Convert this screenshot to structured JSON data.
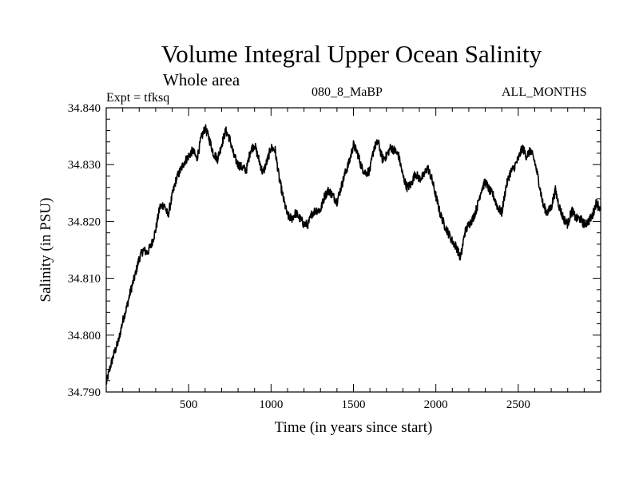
{
  "header": {
    "title": "Volume Integral Upper Ocean Salinity",
    "subtitle": "Whole area",
    "expt": "Expt = tfksq",
    "run": "080_8_MaBP",
    "period": "ALL_MONTHS"
  },
  "chart_data": {
    "type": "line",
    "title": "Volume Integral Upper Ocean Salinity",
    "subtitle": "Whole area",
    "xlabel": "Time (in years since start)",
    "ylabel": "Salinity (in PSU)",
    "xlim": [
      0,
      3000
    ],
    "ylim": [
      34.79,
      34.84
    ],
    "xticks": [
      500,
      1000,
      1500,
      2000,
      2500
    ],
    "xtick_labels": [
      "500",
      "1000",
      "1500",
      "2000",
      "2500"
    ],
    "yticks": [
      34.79,
      34.8,
      34.81,
      34.82,
      34.83,
      34.84
    ],
    "ytick_labels": [
      "34.790",
      "34.800",
      "34.810",
      "34.820",
      "34.830",
      "34.840"
    ],
    "grid": false,
    "series": [
      {
        "name": "Salinity",
        "color": "#000000",
        "x": [
          0,
          25,
          50,
          75,
          100,
          125,
          150,
          175,
          200,
          225,
          250,
          275,
          300,
          325,
          350,
          375,
          400,
          425,
          450,
          475,
          500,
          525,
          550,
          575,
          600,
          625,
          650,
          675,
          700,
          725,
          750,
          775,
          800,
          825,
          850,
          875,
          900,
          925,
          950,
          975,
          1000,
          1025,
          1050,
          1075,
          1100,
          1125,
          1150,
          1175,
          1200,
          1225,
          1250,
          1275,
          1300,
          1325,
          1350,
          1375,
          1400,
          1425,
          1450,
          1475,
          1500,
          1525,
          1550,
          1575,
          1600,
          1625,
          1650,
          1675,
          1700,
          1725,
          1750,
          1775,
          1800,
          1825,
          1850,
          1875,
          1900,
          1925,
          1950,
          1975,
          2000,
          2025,
          2050,
          2075,
          2100,
          2125,
          2150,
          2175,
          2200,
          2225,
          2250,
          2275,
          2300,
          2325,
          2350,
          2375,
          2400,
          2425,
          2450,
          2475,
          2500,
          2525,
          2550,
          2575,
          2600,
          2625,
          2650,
          2675,
          2700,
          2725,
          2750,
          2775,
          2800,
          2825,
          2850,
          2875,
          2900,
          2925,
          2950,
          2975,
          3000
        ],
        "values": [
          34.7915,
          34.7945,
          34.797,
          34.799,
          34.8025,
          34.805,
          34.808,
          34.8105,
          34.8135,
          34.815,
          34.8145,
          34.816,
          34.8185,
          34.8225,
          34.823,
          34.821,
          34.8245,
          34.8275,
          34.829,
          34.8305,
          34.8315,
          34.8325,
          34.831,
          34.8345,
          34.8365,
          34.8345,
          34.832,
          34.831,
          34.8335,
          34.836,
          34.8345,
          34.8315,
          34.83,
          34.8295,
          34.829,
          34.8325,
          34.8335,
          34.831,
          34.8285,
          34.8305,
          34.833,
          34.8325,
          34.8275,
          34.824,
          34.821,
          34.8205,
          34.8215,
          34.8205,
          34.8195,
          34.8195,
          34.8215,
          34.822,
          34.822,
          34.8245,
          34.8255,
          34.8245,
          34.8235,
          34.826,
          34.8285,
          34.8305,
          34.8335,
          34.832,
          34.8295,
          34.8285,
          34.829,
          34.833,
          34.834,
          34.831,
          34.8315,
          34.833,
          34.8325,
          34.8315,
          34.828,
          34.826,
          34.8265,
          34.8285,
          34.8275,
          34.828,
          34.8295,
          34.8275,
          34.8245,
          34.8215,
          34.8195,
          34.818,
          34.8165,
          34.8155,
          34.8135,
          34.818,
          34.8195,
          34.8205,
          34.8225,
          34.8255,
          34.827,
          34.8255,
          34.8245,
          34.8225,
          34.8215,
          34.826,
          34.8285,
          34.8295,
          34.831,
          34.833,
          34.8315,
          34.8325,
          34.8305,
          34.827,
          34.823,
          34.8215,
          34.8225,
          34.8255,
          34.8225,
          34.8205,
          34.8195,
          34.822,
          34.8205,
          34.8205,
          34.8195,
          34.82,
          34.821,
          34.8235,
          34.822
        ]
      }
    ]
  }
}
